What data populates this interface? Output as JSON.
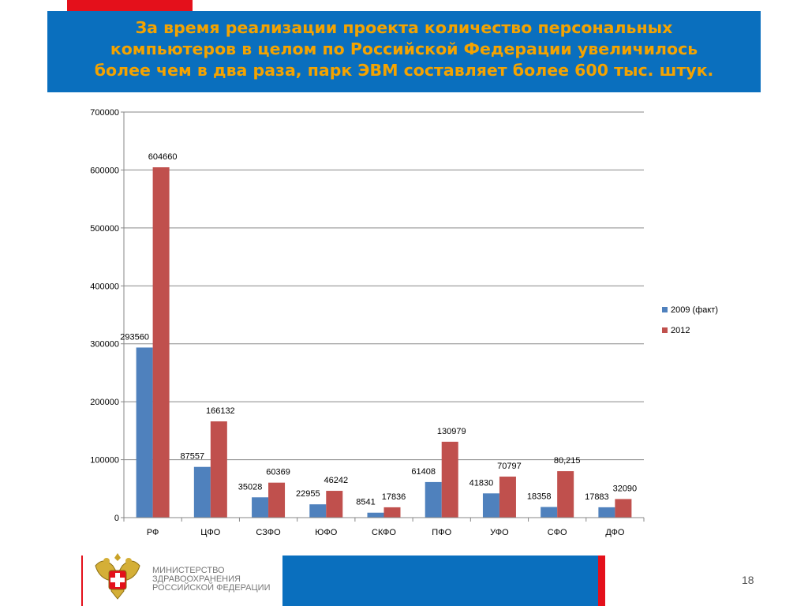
{
  "title": "За время реализации проекта количество персональных компьютеров в целом по Российской Федерации увеличилось более чем в два раза, парк ЭВМ составляет более 600 тыс. штук.",
  "title_lines": [
    "За время реализации проекта количество персональных",
    "компьютеров в целом по Российской Федерации увеличилось",
    "более чем в два раза, парк ЭВМ составляет более 600 тыс. штук."
  ],
  "colors": {
    "banner": "#0a6fbe",
    "title": "#f4a300",
    "accent_red": "#e4101b"
  },
  "chart_data": {
    "type": "bar",
    "categories": [
      "РФ",
      "ЦФО",
      "СЗФО",
      "ЮФО",
      "СКФО",
      "ПФО",
      "УФО",
      "СФО",
      "ДФО"
    ],
    "series": [
      {
        "name": "2009 (факт)",
        "color": "#4f81bd",
        "values": [
          293560,
          87557,
          35028,
          22955,
          8541,
          61408,
          41830,
          18358,
          17883
        ],
        "labels": [
          "293560",
          "87557",
          "35028",
          "22955",
          "8541",
          "61408",
          "41830",
          "18358",
          "17883"
        ]
      },
      {
        "name": "2012",
        "color": "#c0504d",
        "values": [
          604660,
          166132,
          60369,
          46242,
          17836,
          130979,
          70797,
          80215,
          32090
        ],
        "labels": [
          "604660",
          "166132",
          "60369",
          "46242",
          "17836",
          "130979",
          "70797",
          "80,215",
          "32090"
        ]
      }
    ],
    "yticks": [
      "0",
      "100000",
      "200000",
      "300000",
      "400000",
      "500000",
      "600000",
      "700000"
    ],
    "ylim": [
      0,
      700000
    ],
    "grid": true,
    "legend_position": "right"
  },
  "footer": {
    "ministry_lines": [
      "МИНИСТЕРСТВО",
      "ЗДРАВООХРАНЕНИЯ",
      "РОССИЙСКОЙ ФЕДЕРАЦИИ"
    ],
    "page_number": "18",
    "emblem_icon": "double-headed-eagle-emblem-icon"
  }
}
